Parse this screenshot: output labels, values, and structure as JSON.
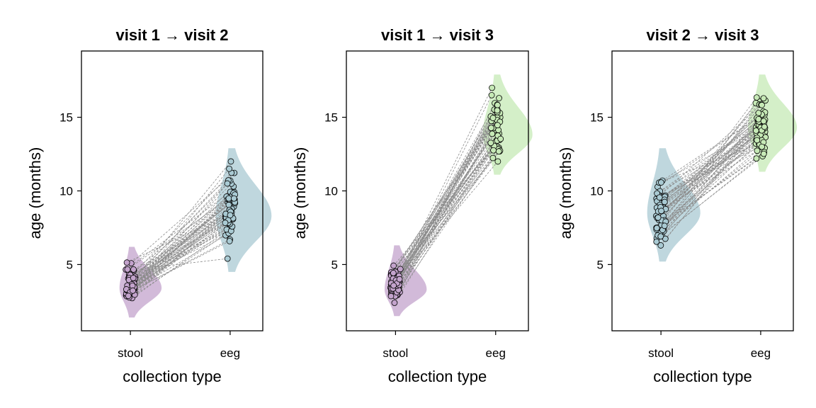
{
  "chart_data": [
    {
      "type": "violin-paired-scatter",
      "title": "visit 1 → visit 2",
      "xlabel": "collection type",
      "ylabel": "age (months)",
      "categories": [
        "stool",
        "eeg"
      ],
      "yticks": [
        5,
        10,
        15
      ],
      "ylim": [
        0.5,
        19.5
      ],
      "grid": false,
      "colors": {
        "stool": "#c3a3cc",
        "eeg": "#a9cad3"
      },
      "distributions": {
        "stool": {
          "mean": 3.7,
          "min": 2.3,
          "max": 5.3,
          "mode": 3.4
        },
        "eeg": {
          "mean": 8.6,
          "min": 5.4,
          "max": 12.0,
          "mode": 8.3
        }
      },
      "n_pairs": 60,
      "seed": 11
    },
    {
      "type": "violin-paired-scatter",
      "title": "visit 1 → visit 3",
      "xlabel": "collection type",
      "ylabel": "age (months)",
      "categories": [
        "stool",
        "eeg"
      ],
      "yticks": [
        5,
        10,
        15
      ],
      "ylim": [
        0.5,
        19.5
      ],
      "grid": false,
      "colors": {
        "stool": "#c3a3cc",
        "eeg": "#c6e9b6"
      },
      "distributions": {
        "stool": {
          "mean": 3.6,
          "min": 2.4,
          "max": 5.4,
          "mode": 3.3
        },
        "eeg": {
          "mean": 14.0,
          "min": 12.0,
          "max": 17.0,
          "mode": 13.8
        }
      },
      "n_pairs": 55,
      "seed": 23
    },
    {
      "type": "violin-paired-scatter",
      "title": "visit 2 → visit 3",
      "xlabel": "collection type",
      "ylabel": "age (months)",
      "categories": [
        "stool",
        "eeg"
      ],
      "yticks": [
        5,
        10,
        15
      ],
      "ylim": [
        0.5,
        19.5
      ],
      "grid": false,
      "colors": {
        "stool": "#a9cad3",
        "eeg": "#c6e9b6"
      },
      "distributions": {
        "stool": {
          "mean": 8.8,
          "min": 6.1,
          "max": 12.0,
          "mode": 8.5
        },
        "eeg": {
          "mean": 14.3,
          "min": 12.2,
          "max": 17.0,
          "mode": 14.3
        }
      },
      "n_pairs": 60,
      "seed": 37
    }
  ]
}
